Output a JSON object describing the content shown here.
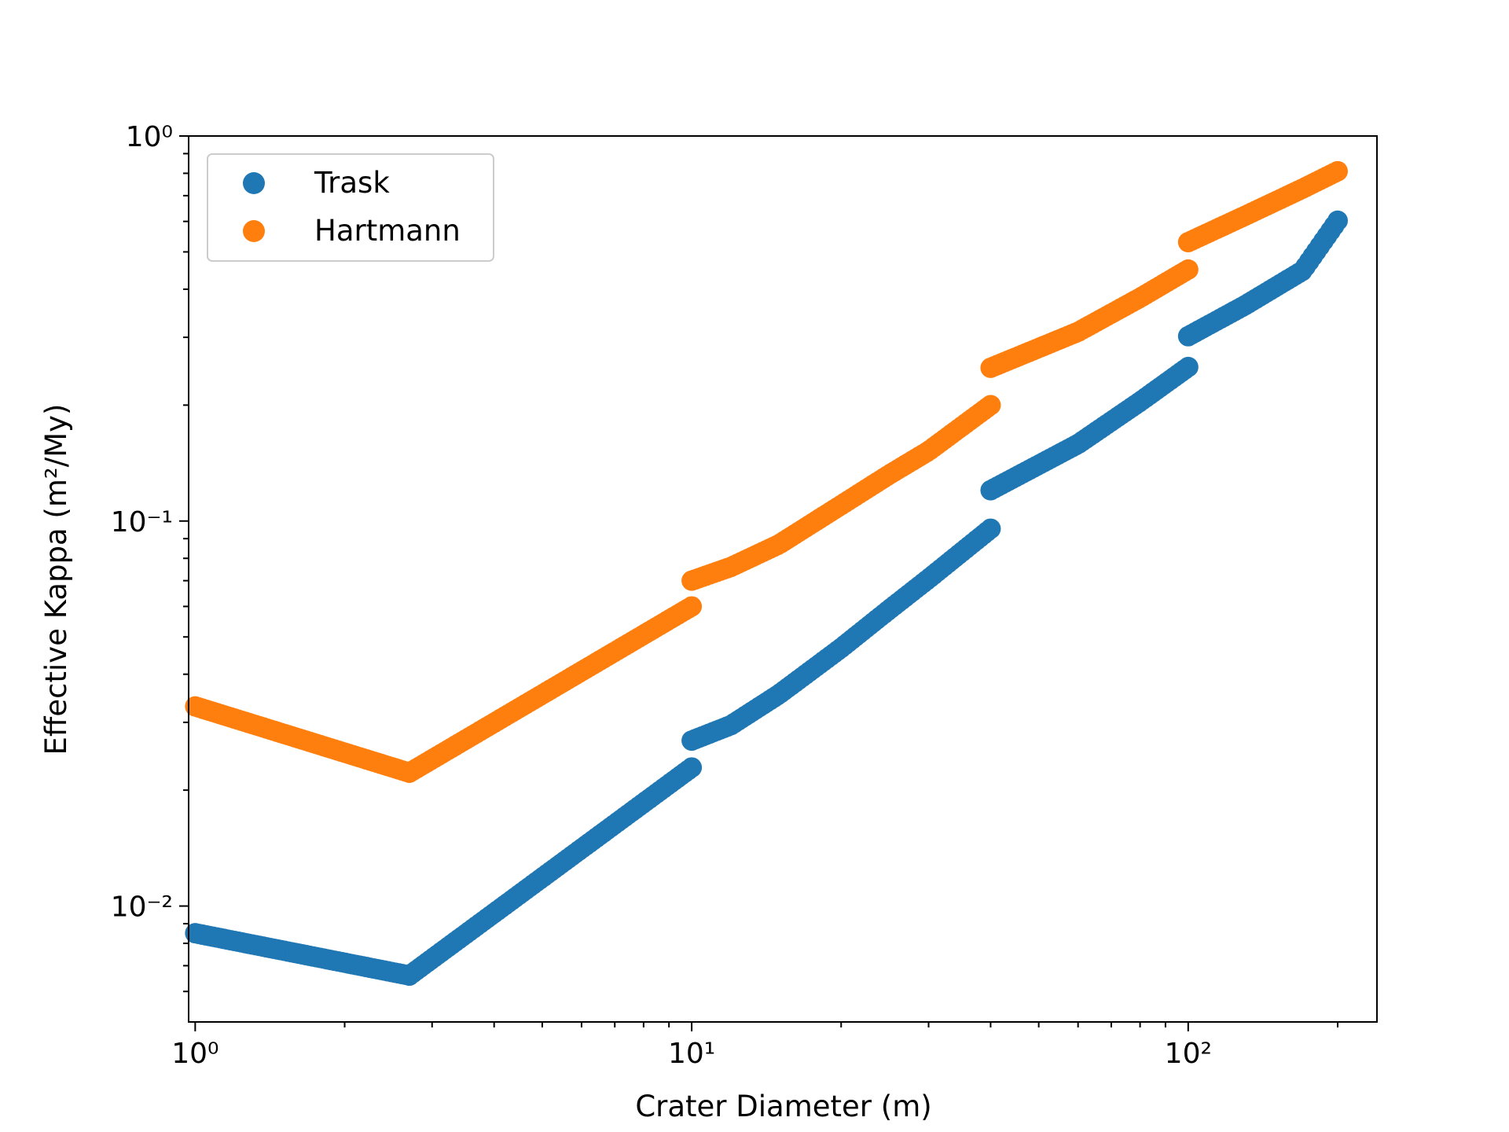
{
  "chart_data": {
    "type": "scatter",
    "xlabel": "Crater Diameter (m)",
    "ylabel": "Effective Kappa (m²/My)",
    "xscale": "log",
    "yscale": "log",
    "xlim": [
      0.97,
      240
    ],
    "ylim": [
      0.005,
      1.0
    ],
    "grid": false,
    "legend_position": "top-left",
    "x_ticks": [
      {
        "value": 1,
        "label": "10⁰"
      },
      {
        "value": 10,
        "label": "10¹"
      },
      {
        "value": 100,
        "label": "10²"
      }
    ],
    "y_ticks": [
      {
        "value": 0.01,
        "label": "10⁻²"
      },
      {
        "value": 0.1,
        "label": "10⁻¹"
      },
      {
        "value": 1.0,
        "label": "10⁰"
      }
    ],
    "series": [
      {
        "name": "Trask",
        "color": "#1f77b4",
        "segments": [
          [
            [
              1.0,
              0.0085
            ],
            [
              2.7,
              0.0066
            ]
          ],
          [
            [
              2.7,
              0.0066
            ],
            [
              10.0,
              0.0229
            ]
          ],
          [
            [
              10.0,
              0.0269
            ],
            [
              12.0,
              0.0295
            ],
            [
              15.0,
              0.0355
            ],
            [
              20.0,
              0.0468
            ],
            [
              25.0,
              0.0589
            ],
            [
              30.0,
              0.0708
            ],
            [
              40.0,
              0.0955
            ]
          ],
          [
            [
              40.0,
              0.1202
            ],
            [
              60.0,
              0.1585
            ],
            [
              80.0,
              0.2042
            ],
            [
              100.0,
              0.2512
            ]
          ],
          [
            [
              100.0,
              0.302
            ],
            [
              130.0,
              0.363
            ],
            [
              170.0,
              0.4467
            ],
            [
              200.0,
              0.6026
            ]
          ]
        ]
      },
      {
        "name": "Hartmann",
        "color": "#ff7f0e",
        "segments": [
          [
            [
              1.0,
              0.033
            ],
            [
              2.7,
              0.0222
            ]
          ],
          [
            [
              2.7,
              0.0222
            ],
            [
              10.0,
              0.06
            ]
          ],
          [
            [
              10.0,
              0.07
            ],
            [
              12.0,
              0.076
            ],
            [
              15.0,
              0.087
            ],
            [
              20.0,
              0.11
            ],
            [
              25.0,
              0.132
            ],
            [
              30.0,
              0.152
            ],
            [
              40.0,
              0.2
            ]
          ],
          [
            [
              40.0,
              0.25
            ],
            [
              60.0,
              0.31
            ],
            [
              80.0,
              0.38
            ],
            [
              100.0,
              0.45
            ]
          ],
          [
            [
              100.0,
              0.53
            ],
            [
              130.0,
              0.62
            ],
            [
              170.0,
              0.73
            ],
            [
              200.0,
              0.81
            ]
          ]
        ]
      }
    ]
  }
}
